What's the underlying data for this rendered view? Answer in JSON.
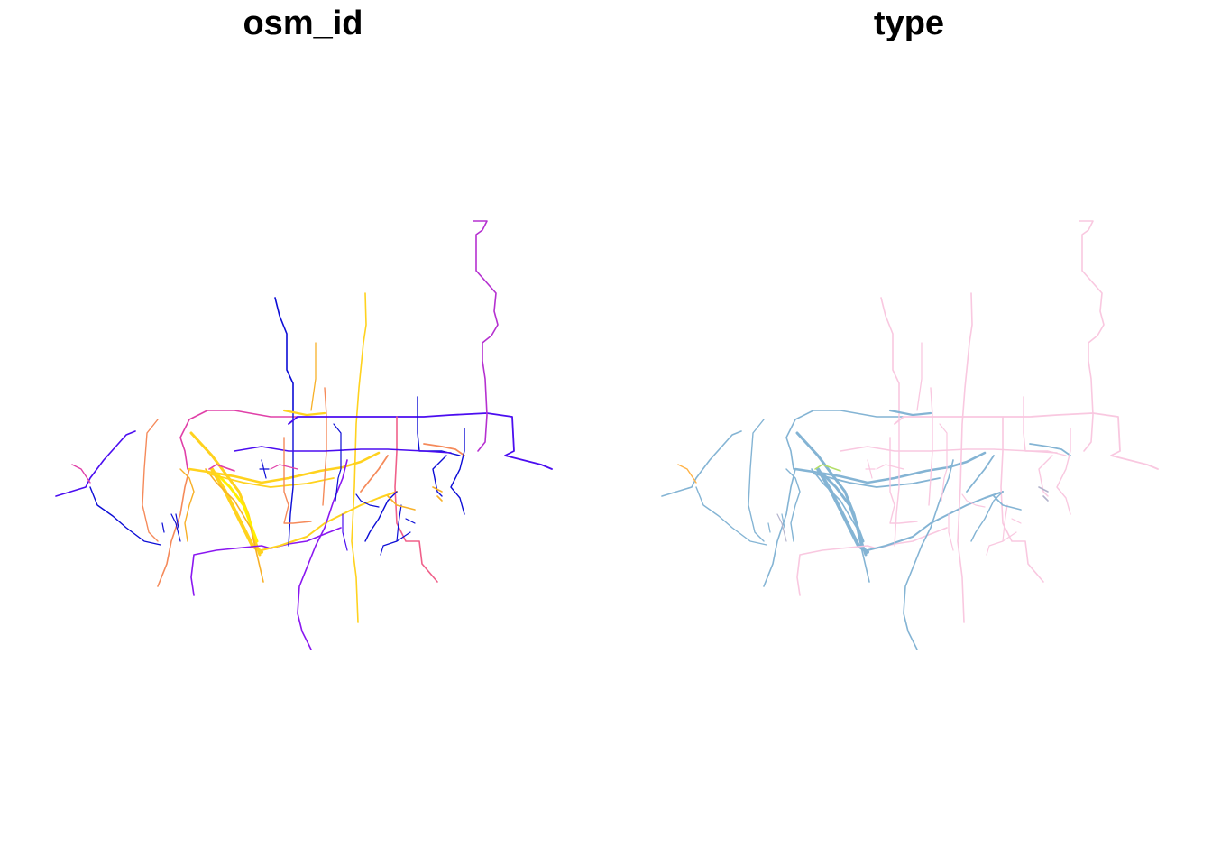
{
  "panels": [
    {
      "title": "osm_id"
    },
    {
      "title": "type"
    }
  ],
  "colors": {
    "osm_palette": [
      "#0d0dd6",
      "#4b0df0",
      "#8a17f0",
      "#b530d0",
      "#e040a8",
      "#f0608a",
      "#f58a5a",
      "#f7b028",
      "#ffd21e",
      "#fff000"
    ],
    "type_river": "#84b4d4",
    "type_road": "#f9c8e0",
    "type_minor": [
      "#b3b3cc",
      "#ffff88",
      "#ffb347",
      "#e86565",
      "#b3de69"
    ]
  }
}
